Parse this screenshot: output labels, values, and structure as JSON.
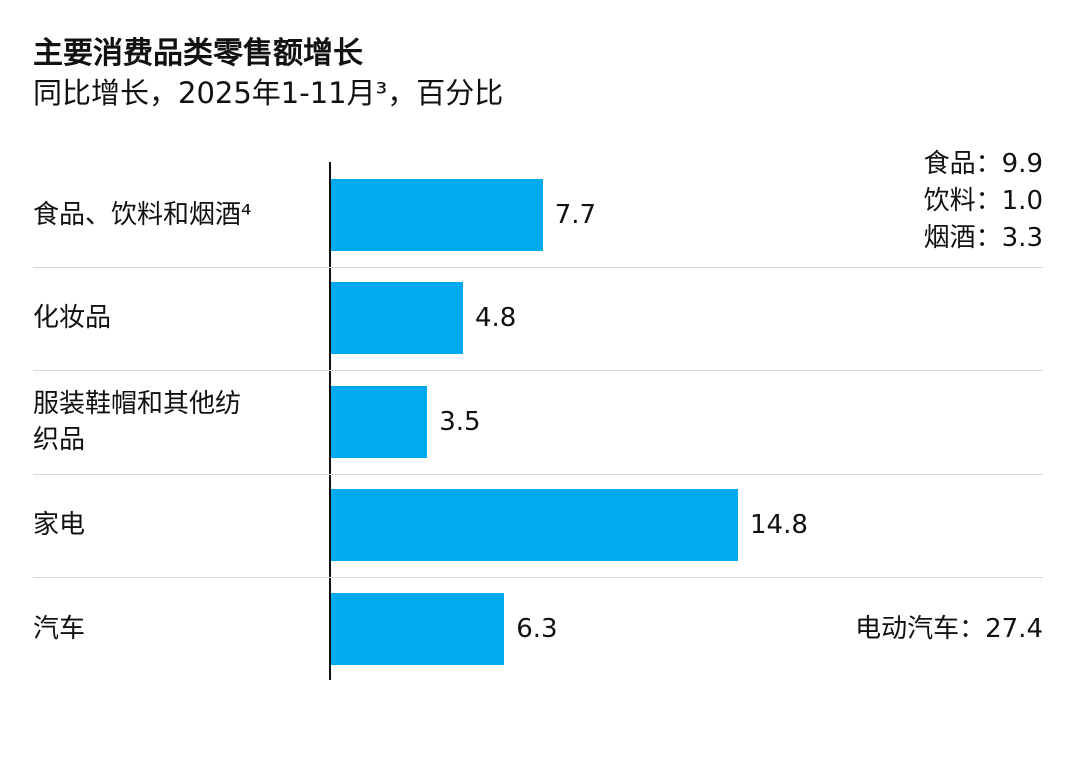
{
  "chart_data": {
    "type": "bar",
    "orientation": "horizontal",
    "title": "主要消费品类零售额增长",
    "subtitle": "同比增长，2025年1-11月³，百分比",
    "categories": [
      "食品、饮料和烟酒⁴",
      "化妆品",
      "服装鞋帽和其他纺织品",
      "家电",
      "汽车"
    ],
    "values": [
      7.7,
      4.8,
      3.5,
      14.8,
      6.3
    ],
    "color": "#00aaef",
    "annotations": [
      [
        "食品：9.9",
        "饮料：1.0",
        "烟酒：3.3"
      ],
      [],
      [],
      [],
      [
        "电动汽车：27.4"
      ]
    ]
  }
}
